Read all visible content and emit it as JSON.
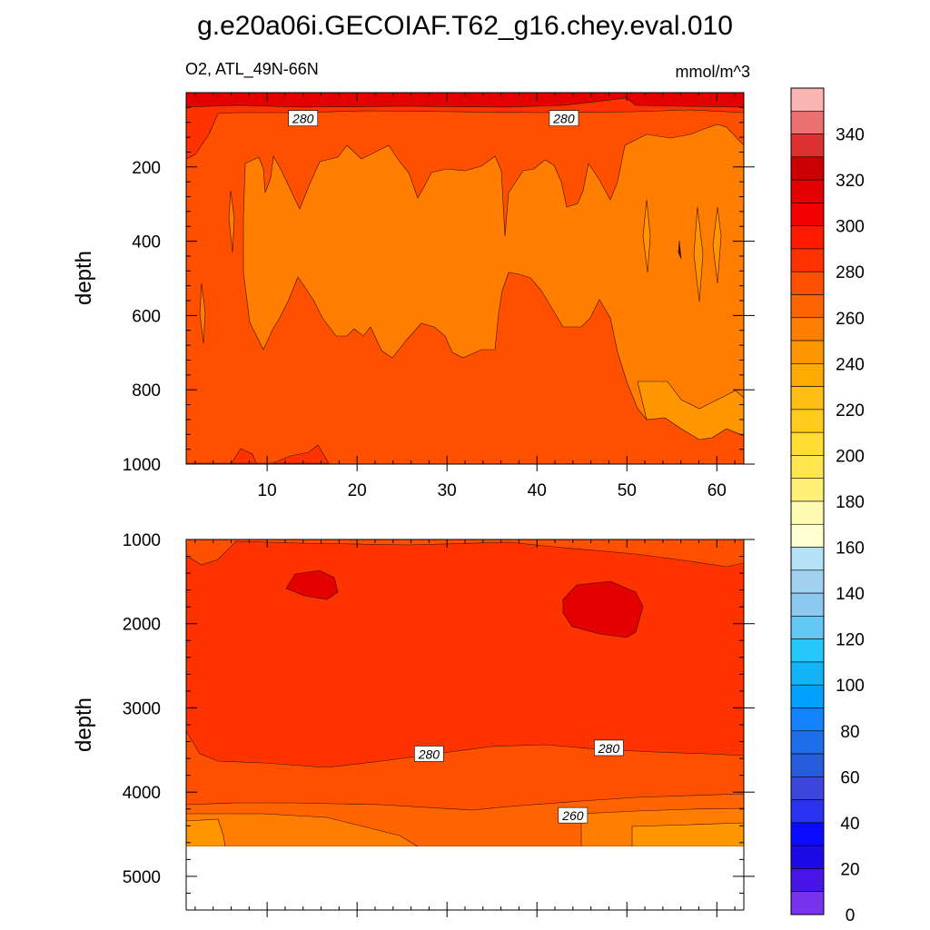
{
  "title": "g.e20a06i.GECOIAF.T62_g16.chey.eval.010",
  "chart_data": [
    {
      "type": "contour",
      "panel": "upper",
      "subtitle_left": "O2, ATL_49N-66N",
      "subtitle_right": "mmol/m^3",
      "ylabel": "depth",
      "xlabel": "",
      "xlim": [
        1,
        63
      ],
      "ylim": [
        1000,
        0
      ],
      "x_ticks": [
        "10",
        "20",
        "30",
        "40",
        "50",
        "60"
      ],
      "y_ticks": [
        "200",
        "400",
        "600",
        "800",
        "1000"
      ],
      "contour_labels": [
        {
          "text": "280",
          "x": 14,
          "depth": 70
        },
        {
          "text": "280",
          "x": 43,
          "depth": 70
        }
      ]
    },
    {
      "type": "contour",
      "panel": "lower",
      "ylabel": "depth",
      "xlabel": "",
      "xlim": [
        1,
        63
      ],
      "ylim": [
        5400,
        1000
      ],
      "y_ticks": [
        "1000",
        "2000",
        "3000",
        "4000",
        "5000"
      ],
      "contour_labels": [
        {
          "text": "280",
          "x": 28,
          "depth": 3550
        },
        {
          "text": "280",
          "x": 48,
          "depth": 3480
        },
        {
          "text": "260",
          "x": 44,
          "depth": 4280
        }
      ]
    }
  ],
  "colorbar": {
    "labels": [
      "340",
      "320",
      "300",
      "280",
      "260",
      "240",
      "220",
      "200",
      "180",
      "160",
      "140",
      "120",
      "100",
      "80",
      "60",
      "40",
      "20",
      "0"
    ],
    "colors_top_to_bottom": [
      "#fbb4b4",
      "#ec7070",
      "#dd3030",
      "#cc0000",
      "#e20000",
      "#f20000",
      "#ff1a00",
      "#ff3300",
      "#ff5000",
      "#ff6400",
      "#ff7d00",
      "#ff9600",
      "#ffaa00",
      "#ffbe14",
      "#ffcc1e",
      "#ffdd33",
      "#ffe650",
      "#fff078",
      "#fffab4",
      "#ffffd2",
      "#b4e1f5",
      "#a0d2f0",
      "#8cc8f0",
      "#64c8f5",
      "#28c8fa",
      "#14b4fa",
      "#00a0ff",
      "#1482ff",
      "#1e6eeb",
      "#285adc",
      "#3c46dc",
      "#2832f0",
      "#0a0aff",
      "#1e0ae6",
      "#4614e6",
      "#7832f0"
    ]
  }
}
